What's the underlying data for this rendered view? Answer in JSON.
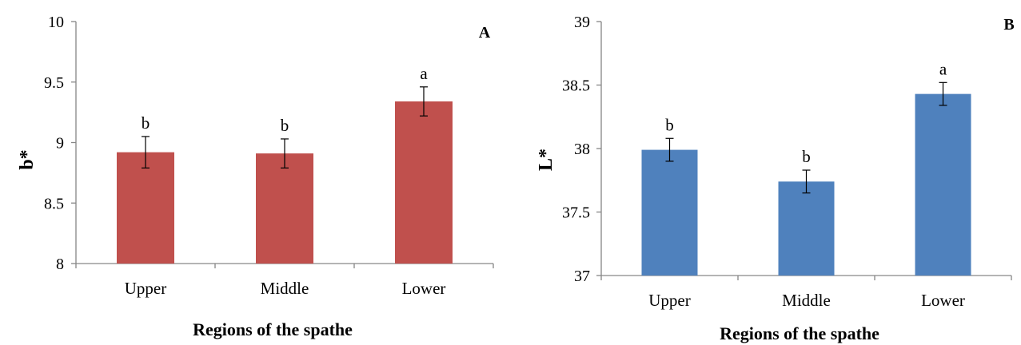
{
  "chart_data": [
    {
      "type": "bar",
      "panel_label": "A",
      "categories": [
        "Upper",
        "Middle",
        "Lower"
      ],
      "values": [
        8.92,
        8.91,
        9.34
      ],
      "error": [
        0.13,
        0.12,
        0.12
      ],
      "letters": [
        "b",
        "b",
        "a"
      ],
      "ylim": [
        8,
        10
      ],
      "yticks": [
        8,
        8.5,
        9,
        9.5,
        10
      ],
      "ytick_labels": [
        "8",
        "8.5",
        "9",
        "9.5",
        "10"
      ],
      "xlabel": "Regions of the spathe",
      "ylabel": "b*",
      "bar_color": "#c0504d",
      "grid": false
    },
    {
      "type": "bar",
      "panel_label": "B",
      "categories": [
        "Upper",
        "Middle",
        "Lower"
      ],
      "values": [
        37.99,
        37.74,
        38.43
      ],
      "error": [
        0.09,
        0.09,
        0.09
      ],
      "letters": [
        "b",
        "b",
        "a"
      ],
      "ylim": [
        37,
        39
      ],
      "yticks": [
        37,
        37.5,
        38,
        38.5,
        39
      ],
      "ytick_labels": [
        "37",
        "37.5",
        "38",
        "38.5",
        "39"
      ],
      "xlabel": "Regions of the spathe",
      "ylabel": "L*",
      "bar_color": "#4f81bd",
      "grid": false
    }
  ]
}
